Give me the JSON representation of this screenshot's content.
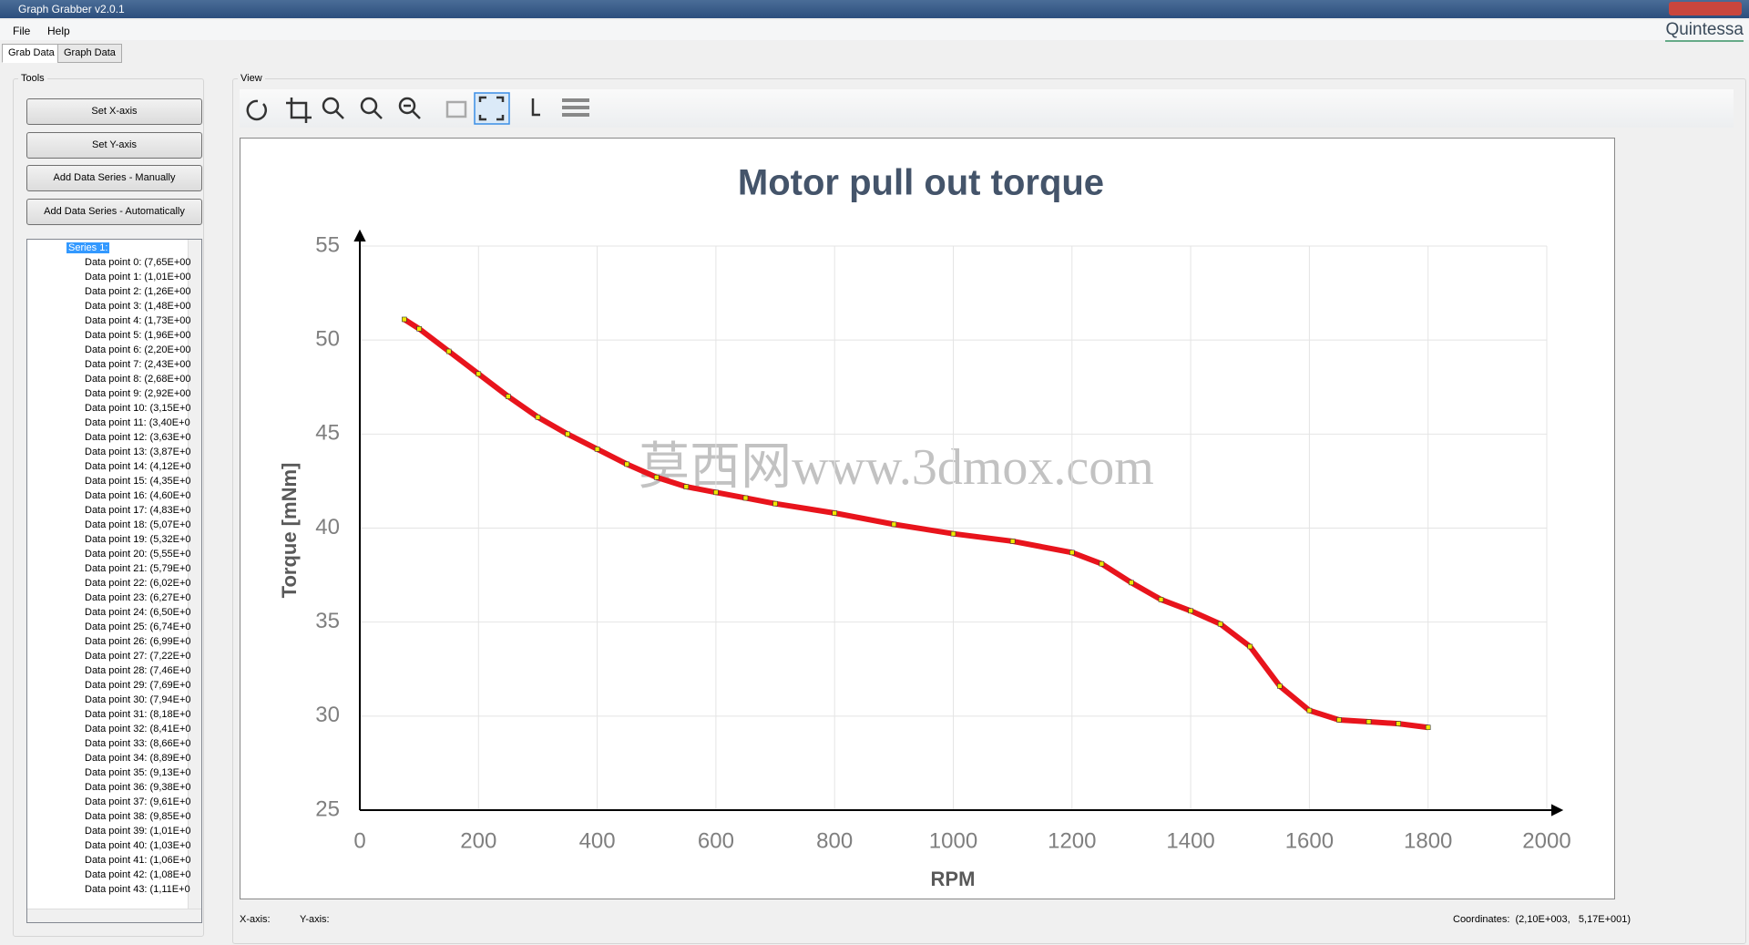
{
  "window": {
    "title": "Graph Grabber v2.0.1",
    "menu": [
      "File",
      "Help"
    ],
    "brand": "Quintessa",
    "tabs": [
      "Grab Data",
      "Graph Data"
    ]
  },
  "tools": {
    "label": "Tools",
    "buttons": [
      "Set X-axis",
      "Set Y-axis",
      "Add Data Series - Manually",
      "Add Data Series - Automatically"
    ],
    "tree": {
      "series": "Series 1:",
      "items": [
        "Data point 0: (7,65E+00",
        "Data point 1: (1,01E+00",
        "Data point 2: (1,26E+00",
        "Data point 3: (1,48E+00",
        "Data point 4: (1,73E+00",
        "Data point 5: (1,96E+00",
        "Data point 6: (2,20E+00",
        "Data point 7: (2,43E+00",
        "Data point 8: (2,68E+00",
        "Data point 9: (2,92E+00",
        "Data point 10: (3,15E+0",
        "Data point 11: (3,40E+0",
        "Data point 12: (3,63E+0",
        "Data point 13: (3,87E+0",
        "Data point 14: (4,12E+0",
        "Data point 15: (4,35E+0",
        "Data point 16: (4,60E+0",
        "Data point 17: (4,83E+0",
        "Data point 18: (5,07E+0",
        "Data point 19: (5,32E+0",
        "Data point 20: (5,55E+0",
        "Data point 21: (5,79E+0",
        "Data point 22: (6,02E+0",
        "Data point 23: (6,27E+0",
        "Data point 24: (6,50E+0",
        "Data point 25: (6,74E+0",
        "Data point 26: (6,99E+0",
        "Data point 27: (7,22E+0",
        "Data point 28: (7,46E+0",
        "Data point 29: (7,69E+0",
        "Data point 30: (7,94E+0",
        "Data point 31: (8,18E+0",
        "Data point 32: (8,41E+0",
        "Data point 33: (8,66E+0",
        "Data point 34: (8,89E+0",
        "Data point 35: (9,13E+0",
        "Data point 36: (9,38E+0",
        "Data point 37: (9,61E+0",
        "Data point 38: (9,85E+0",
        "Data point 39: (1,01E+0",
        "Data point 40: (1,03E+0",
        "Data point 41: (1,06E+0",
        "Data point 42: (1,08E+0",
        "Data point 43: (1,11E+0"
      ]
    }
  },
  "view": {
    "label": "View",
    "watermark": "莫西网www.3dmox.com"
  },
  "status": {
    "x_axis": "X-axis:",
    "y_axis": "Y-axis:",
    "coordinates": "Coordinates:  (2,10E+003,   5,17E+001)"
  },
  "chart_data": {
    "type": "line",
    "title": "Motor pull out torque",
    "x_label": "RPM",
    "y_label": "Torque [mNm]",
    "x": [
      75,
      100,
      150,
      200,
      250,
      300,
      350,
      400,
      450,
      500,
      550,
      600,
      650,
      700,
      800,
      900,
      1000,
      1100,
      1200,
      1250,
      1300,
      1350,
      1400,
      1450,
      1500,
      1550,
      1600,
      1650,
      1700,
      1750,
      1800
    ],
    "series": [
      {
        "name": "Series 1",
        "color": "#e8141c",
        "values": [
          51.1,
          50.6,
          49.4,
          48.2,
          47.0,
          45.9,
          45.0,
          44.2,
          43.4,
          42.7,
          42.2,
          41.9,
          41.6,
          41.3,
          40.8,
          40.2,
          39.7,
          39.3,
          38.7,
          38.1,
          37.1,
          36.2,
          35.6,
          34.9,
          33.7,
          31.6,
          30.3,
          29.8,
          29.7,
          29.6,
          29.4
        ]
      }
    ],
    "xlim": [
      0,
      2000
    ],
    "ylim": [
      25,
      55
    ],
    "xticks": [
      0,
      200,
      400,
      600,
      800,
      1000,
      1200,
      1400,
      1600,
      1800,
      2000
    ],
    "yticks": [
      25,
      30,
      35,
      40,
      45,
      50,
      55
    ],
    "grid": true,
    "marker_color": "#f2e600"
  }
}
